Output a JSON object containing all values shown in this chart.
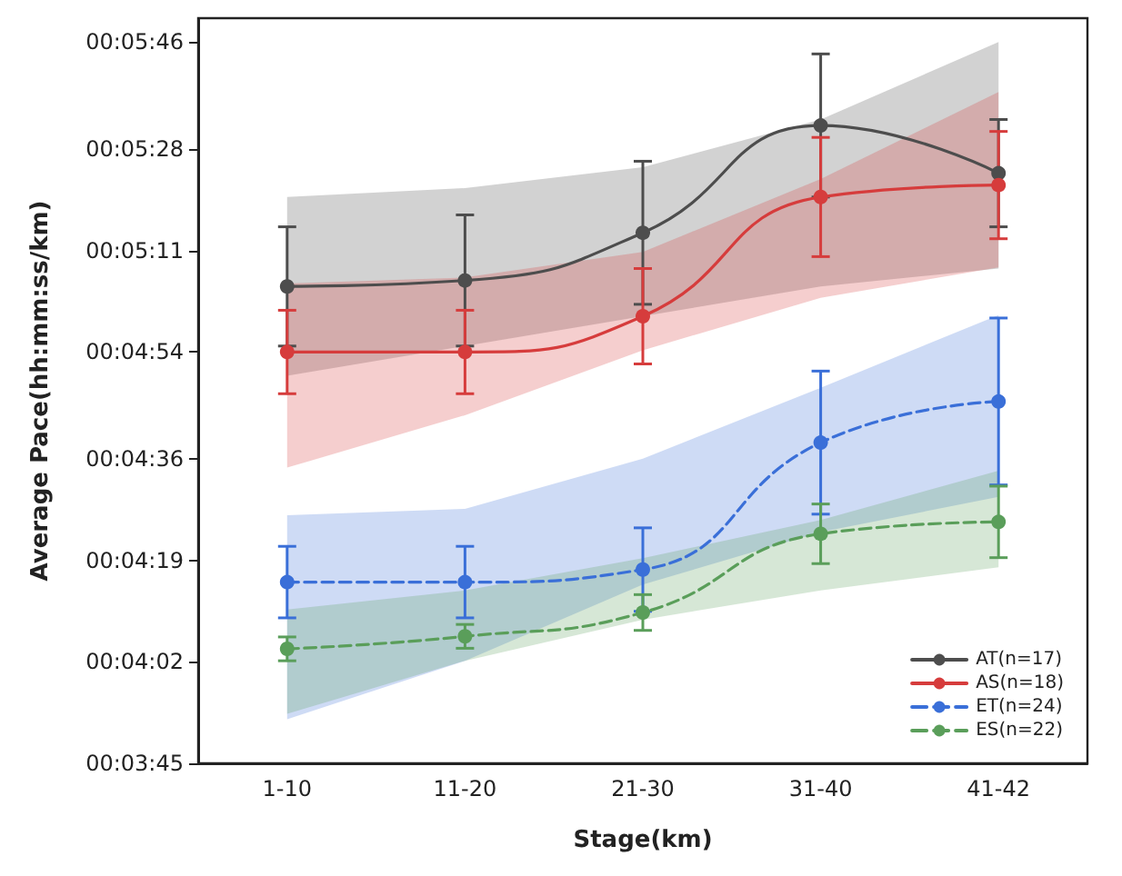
{
  "chart_data": {
    "type": "line",
    "xlabel": "Stage(km)",
    "ylabel": "Average Pace(hh:mm:ss/km)",
    "categories": [
      "1-10",
      "11-20",
      "21-30",
      "31-40",
      "41-42"
    ],
    "ylim": [
      225,
      350
    ],
    "yticks": [
      {
        "value": 225,
        "label": "00:03:45"
      },
      {
        "value": 242,
        "label": "00:04:02"
      },
      {
        "value": 259,
        "label": "00:04:19"
      },
      {
        "value": 276,
        "label": "00:04:36"
      },
      {
        "value": 294,
        "label": "00:04:54"
      },
      {
        "value": 311,
        "label": "00:05:11"
      },
      {
        "value": 328,
        "label": "00:05:28"
      },
      {
        "value": 346,
        "label": "00:05:46"
      }
    ],
    "series": [
      {
        "name": "AT(n=17)",
        "color": "#4d4d4d",
        "line_style": "solid",
        "values": [
          305,
          306,
          314,
          332,
          324
        ],
        "errors": [
          10,
          11,
          12,
          12,
          9
        ],
        "lower": [
          290,
          295,
          300,
          305,
          308
        ],
        "upper": [
          320,
          321.5,
          325,
          333,
          346
        ]
      },
      {
        "name": "AS(n=18)",
        "color": "#d63c3c",
        "line_style": "solid",
        "values": [
          294,
          294,
          300,
          320,
          322
        ],
        "errors": [
          7,
          7,
          8,
          10,
          9
        ],
        "lower": [
          274.6,
          283.4,
          294.3,
          303.1,
          308.2
        ],
        "upper": [
          305.5,
          306.5,
          310.8,
          323,
          337.6
        ]
      },
      {
        "name": "ET(n=24)",
        "color": "#3a6fd8",
        "line_style": "dashed",
        "values": [
          255.4,
          255.4,
          257.5,
          278.8,
          285.7
        ],
        "errors": [
          6,
          6,
          7,
          12,
          14
        ],
        "lower": [
          232.4,
          242.2,
          255,
          263.8,
          269.7
        ],
        "upper": [
          266.6,
          267.7,
          276.1,
          288,
          300.2
        ]
      },
      {
        "name": "ES(n=22)",
        "color": "#5a9e5a",
        "line_style": "dashed",
        "values": [
          244.2,
          246.3,
          250.3,
          263.5,
          265.5
        ],
        "errors": [
          2,
          2,
          3,
          5,
          6
        ],
        "lower": [
          233.3,
          242.2,
          249.1,
          254,
          257.9
        ],
        "upper": [
          250.8,
          254,
          259.4,
          265.8,
          274.1
        ]
      }
    ],
    "marker": "circle",
    "legend": "bottom right",
    "grid": false
  }
}
